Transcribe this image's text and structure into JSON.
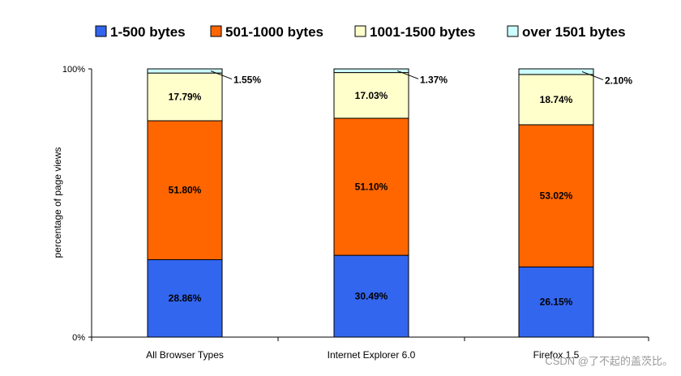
{
  "chart_data": {
    "type": "bar",
    "stacked": true,
    "categories": [
      "All Browser Types",
      "Internet Explorer 6.0",
      "Firefox 1.5"
    ],
    "series": [
      {
        "name": "1-500 bytes",
        "color": "#3366ee",
        "values": [
          28.86,
          30.49,
          26.15
        ],
        "labels": [
          "28.86%",
          "30.49%",
          "26.15%"
        ]
      },
      {
        "name": "501-1000 bytes",
        "color": "#ff6600",
        "values": [
          51.8,
          51.1,
          53.02
        ],
        "labels": [
          "51.80%",
          "51.10%",
          "53.02%"
        ]
      },
      {
        "name": "1001-1500 bytes",
        "color": "#ffffcc",
        "values": [
          17.79,
          17.03,
          18.74
        ],
        "labels": [
          "17.79%",
          "17.03%",
          "18.74%"
        ]
      },
      {
        "name": "over 1501 bytes",
        "color": "#ccffff",
        "values": [
          1.55,
          1.37,
          2.1
        ],
        "labels": [
          "1.55%",
          "1.37%",
          "2.10%"
        ]
      }
    ],
    "ylabel": "percentage of page views",
    "ylim": [
      0,
      100
    ],
    "yticks": [
      "0%",
      "100%"
    ],
    "grid": false,
    "legend": "top"
  },
  "watermark": "CSDN @了不起的盖茨比。"
}
